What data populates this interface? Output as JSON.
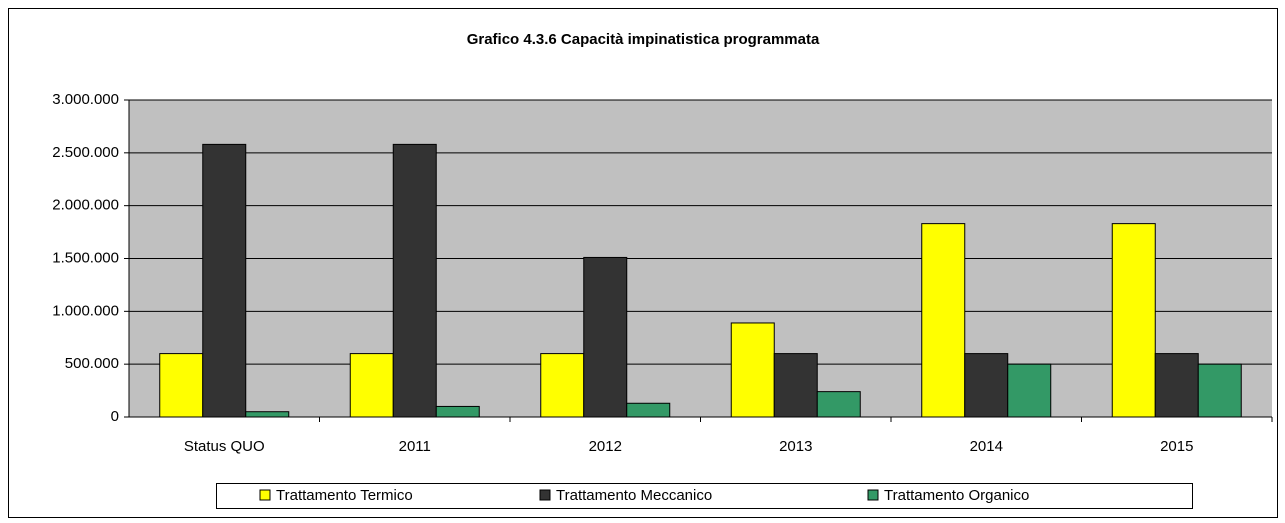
{
  "chart_data": {
    "type": "bar",
    "title": "Grafico 4.3.6 Capacità impinatistica programmata",
    "categories": [
      "Status QUO",
      "2011",
      "2012",
      "2013",
      "2014",
      "2015"
    ],
    "series": [
      {
        "name": "Trattamento Termico",
        "color": "#ffff00",
        "values": [
          600000,
          600000,
          600000,
          890000,
          1830000,
          1830000
        ]
      },
      {
        "name": "Trattamento Meccanico",
        "color": "#333333",
        "values": [
          2580000,
          2580000,
          1510000,
          600000,
          600000,
          600000
        ]
      },
      {
        "name": "Trattamento Organico",
        "color": "#339966",
        "values": [
          50000,
          100000,
          130000,
          240000,
          500000,
          500000
        ]
      }
    ],
    "ylim": [
      0,
      3000000
    ],
    "yticks": [
      0,
      {
        "value": 500000,
        "label": "500.000"
      },
      {
        "value": 1000000,
        "label": "1.000.000"
      },
      {
        "value": 1500000,
        "label": "1.500.000"
      },
      {
        "value": 2000000,
        "label": "2.000.000"
      },
      {
        "value": 2500000,
        "label": "2.500.000"
      },
      {
        "value": 3000000,
        "label": "3.000.000"
      }
    ],
    "grid": true,
    "legend": "bottom"
  }
}
